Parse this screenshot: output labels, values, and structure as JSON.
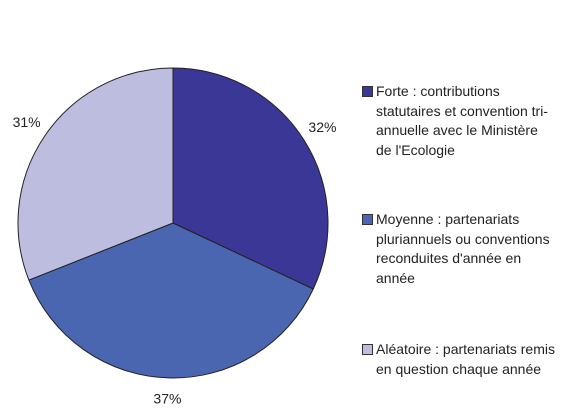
{
  "chart_data": {
    "type": "pie",
    "categories": [
      "Forte : contributions statutaires et convention tri-annuelle avec le Ministère de l'Ecologie",
      "Moyenne : partenariats pluriannuels ou conventions reconduites d'année en année",
      "Aléatoire : partenariats remis en question chaque année"
    ],
    "values": [
      32,
      37,
      31
    ],
    "value_labels": [
      "32%",
      "37%",
      "31%"
    ],
    "colors": [
      "#3a3797",
      "#4a66b0",
      "#bdbde0"
    ],
    "legend": "right"
  }
}
